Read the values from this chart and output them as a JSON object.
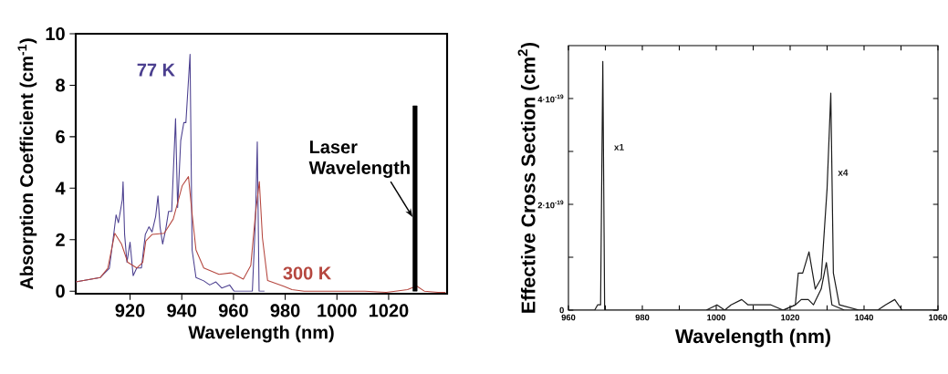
{
  "chart_data": [
    {
      "type": "line",
      "xlabel": "Wavelength (nm)",
      "ylabel": "Absorption Coefficient (cm$^{-1}$)",
      "xlim": [
        899,
        1042.6
      ],
      "ylim": [
        -0.1,
        10
      ],
      "xticks": [
        920,
        940,
        960,
        980,
        1000,
        1020
      ],
      "yticks": [
        0,
        2,
        4,
        6,
        8,
        10
      ],
      "series": [
        {
          "name": "77 K",
          "color": "#4b3f8f",
          "x": [
            899,
            908.5,
            912,
            913.8,
            914.6,
            915.5,
            917,
            917.3,
            917.9,
            918.8,
            920,
            921.2,
            922.6,
            924.4,
            925.9,
            927.3,
            928.5,
            929.9,
            930.8,
            931.6,
            932.6,
            933.8,
            934.9,
            936.1,
            937.6,
            938.4,
            939.6,
            940.8,
            941.6,
            943.2,
            944,
            945.5,
            948.5,
            950.8,
            953.2,
            955.5,
            958.5,
            960.2,
            967.3,
            968.5,
            969.2,
            969.9,
            972
          ],
          "values": [
            0.36,
            0.53,
            0.89,
            2.3,
            2.96,
            2.66,
            3.55,
            4.25,
            2.2,
            1.12,
            1.9,
            0.6,
            0.9,
            0.9,
            2.2,
            2.5,
            2.3,
            2.9,
            3.7,
            2.5,
            1.83,
            2.4,
            3.1,
            3.1,
            6.7,
            3.25,
            5.85,
            6.55,
            6.55,
            9.2,
            1.6,
            0.53,
            0.4,
            0.24,
            0.36,
            0.12,
            0.24,
            0,
            0,
            2.8,
            5.8,
            0,
            0
          ]
        },
        {
          "name": "300 K",
          "color": "#b5473f",
          "x": [
            899,
            908.5,
            911.4,
            914.1,
            916.7,
            919.1,
            922.6,
            924.9,
            926.1,
            928.5,
            933.2,
            936.7,
            940.2,
            942.6,
            944,
            945.5,
            948.5,
            954.4,
            959.1,
            963.8,
            966.7,
            968.5,
            970,
            971.2,
            973.2,
            979.6,
            982.6,
            987.3,
            999,
            1010.8,
            1019,
            1022.6,
            1027.3,
            1030.8,
            1033.8,
            1039.1,
            1042
          ],
          "values": [
            0.36,
            0.53,
            0.89,
            2.25,
            1.83,
            1.12,
            0.9,
            1.12,
            1.95,
            2.2,
            2.25,
            2.8,
            4.1,
            4.45,
            3.0,
            1.6,
            0.9,
            0.65,
            0.71,
            0.47,
            1.0,
            3.0,
            4.26,
            2.07,
            0.41,
            0.18,
            0.06,
            0,
            0,
            0,
            -0.05,
            0,
            0.06,
            0.2,
            0,
            -0.05,
            -0.05
          ]
        },
        {
          "type": "bar",
          "name": "Laser Wavelength",
          "color": "#000000",
          "x": [
            1030.2
          ],
          "values": [
            7.2
          ]
        }
      ]
    },
    {
      "type": "line",
      "xlabel": "Wavelength (nm)",
      "ylabel": "Effective Cross Section (cm$^{2}$)",
      "xlim": [
        960,
        1060
      ],
      "ylim": [
        0,
        5e-19
      ],
      "xticks": [
        960,
        {
          "value": 970,
          "label": null
        },
        980,
        {
          "value": 990,
          "label": null
        },
        1000,
        {
          "value": 1010,
          "label": null
        },
        1020,
        {
          "value": 1030,
          "label": null
        },
        1040,
        {
          "value": 1050,
          "label": null
        },
        1060
      ],
      "yticks": [
        0,
        {
          "value": 1e-19,
          "label": null
        },
        {
          "value": 2e-19,
          "label": "2·10$^{-19}$"
        },
        {
          "value": 3e-19,
          "label": null
        },
        {
          "value": 4e-19,
          "label": "4·10$^{-19}$"
        }
      ],
      "series": [
        {
          "name": "x1",
          "color": "#1a1a1a",
          "x": [
            960,
            967.1,
            967.9,
            968.7,
            969.3,
            969.8,
            970.8,
            998.2,
            1018.1,
            1021.4,
            1023,
            1024.9,
            1026.3,
            1028.4,
            1029.8,
            1031.3,
            1034.7,
            1043,
            1048,
            1060
          ],
          "values": [
            0,
            0,
            1e-20,
            1e-20,
            4.7e-19,
            0,
            0,
            0,
            0,
            1e-20,
            2e-20,
            2e-20,
            1e-20,
            4e-20,
            9e-20,
            1e-20,
            0,
            0,
            0,
            0
          ]
        },
        {
          "name": "x4",
          "color": "#1a1a1a",
          "x": [
            997.3,
            1000.2,
            1002.3,
            1004,
            1006.9,
            1008.6,
            1010.2,
            1014.8,
            1018.1,
            1021.4,
            1022.2,
            1023.4,
            1025.1,
            1026.8,
            1028.4,
            1030,
            1031,
            1031.7,
            1033.3,
            1038.7,
            1043.7,
            1045.8,
            1048.3,
            1050.3,
            1052.8,
            1060
          ],
          "values": [
            0,
            1e-20,
            0,
            1e-20,
            2e-20,
            1e-20,
            1e-20,
            1e-20,
            0,
            1e-20,
            7e-20,
            7e-20,
            1.1e-19,
            4e-20,
            6e-20,
            2.3e-19,
            4.1e-19,
            7e-20,
            1e-20,
            0,
            0,
            1e-20,
            2e-20,
            0,
            0,
            0
          ]
        }
      ]
    }
  ]
}
